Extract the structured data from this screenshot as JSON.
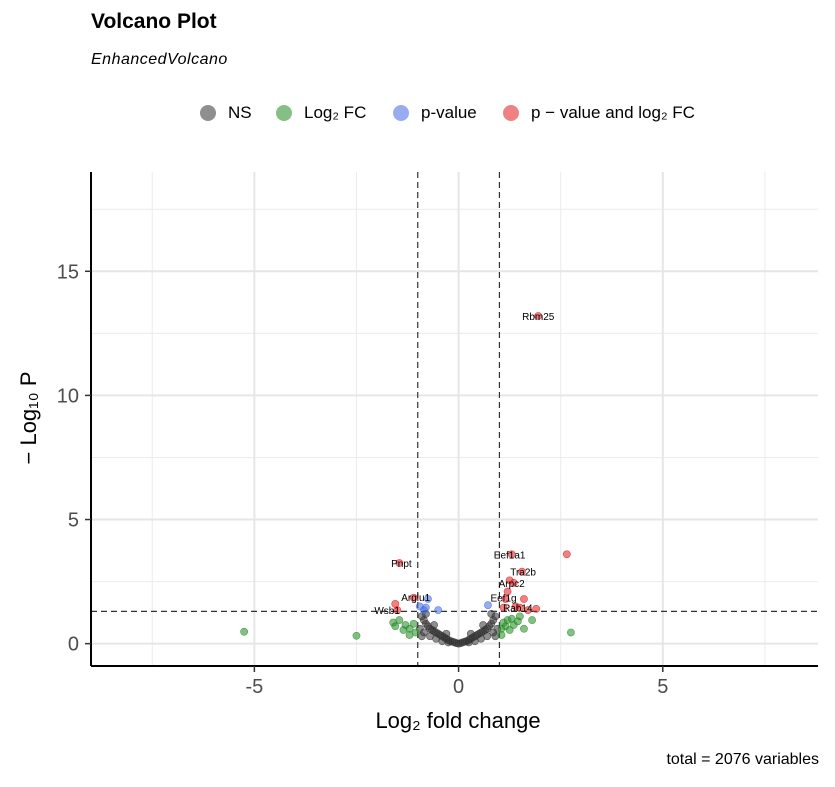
{
  "header": {
    "title": "Volcano Plot",
    "subtitle": "EnhancedVolcano"
  },
  "footer": "total = 2076 variables",
  "legend": [
    {
      "label": "NS",
      "color": "#333333"
    },
    {
      "label": "Log₂ FC",
      "color": "#228B22"
    },
    {
      "label": "p-value",
      "color": "#4169E1"
    },
    {
      "label": "p − value and log₂ FC",
      "color": "#E41A1C"
    }
  ],
  "chart_data": {
    "type": "scatter",
    "title": "Volcano Plot",
    "subtitle": "EnhancedVolcano",
    "xlabel": "Log₂ fold change",
    "ylabel": "− Log₁₀ P",
    "xlim": [
      -9,
      8.8
    ],
    "ylim": [
      -0.9,
      19
    ],
    "xticks": [
      -5,
      0,
      5
    ],
    "xtick_labels": [
      "-5",
      "0",
      "5"
    ],
    "yticks": [
      0,
      5,
      10,
      15
    ],
    "ytick_labels": [
      "0",
      "5",
      "10",
      "15"
    ],
    "grid": true,
    "legend_position": "top",
    "thresholds": {
      "log2fc": [
        -1,
        1
      ],
      "neg_log10_p": 1.3
    },
    "series": [
      {
        "name": "NS",
        "color": "#333333",
        "points": [
          [
            -0.9,
            1.1
          ],
          [
            -0.85,
            0.95
          ],
          [
            -0.8,
            0.8
          ],
          [
            -0.75,
            0.7
          ],
          [
            -0.7,
            0.6
          ],
          [
            -0.65,
            0.55
          ],
          [
            -0.6,
            0.5
          ],
          [
            -0.55,
            0.45
          ],
          [
            -0.5,
            0.4
          ],
          [
            -0.45,
            0.35
          ],
          [
            -0.4,
            0.3
          ],
          [
            -0.35,
            0.25
          ],
          [
            -0.3,
            0.2
          ],
          [
            -0.25,
            0.15
          ],
          [
            -0.2,
            0.1
          ],
          [
            -0.15,
            0.08
          ],
          [
            -0.1,
            0.05
          ],
          [
            -0.05,
            0.02
          ],
          [
            0.0,
            0.0
          ],
          [
            0.05,
            0.02
          ],
          [
            0.1,
            0.05
          ],
          [
            0.15,
            0.08
          ],
          [
            0.2,
            0.1
          ],
          [
            0.25,
            0.15
          ],
          [
            0.3,
            0.2
          ],
          [
            0.35,
            0.25
          ],
          [
            0.4,
            0.3
          ],
          [
            0.45,
            0.35
          ],
          [
            0.5,
            0.4
          ],
          [
            0.55,
            0.45
          ],
          [
            0.6,
            0.5
          ],
          [
            0.65,
            0.55
          ],
          [
            0.7,
            0.6
          ],
          [
            0.75,
            0.7
          ],
          [
            0.8,
            0.8
          ],
          [
            0.85,
            0.95
          ],
          [
            0.9,
            1.1
          ],
          [
            -0.95,
            0.6
          ],
          [
            -0.85,
            0.45
          ],
          [
            -0.7,
            0.3
          ],
          [
            -0.55,
            0.2
          ],
          [
            -0.4,
            0.1
          ],
          [
            -0.25,
            0.05
          ],
          [
            0.25,
            0.05
          ],
          [
            0.4,
            0.1
          ],
          [
            0.55,
            0.2
          ],
          [
            0.7,
            0.3
          ],
          [
            0.85,
            0.45
          ],
          [
            0.95,
            0.6
          ],
          [
            -0.9,
            0.3
          ],
          [
            0.9,
            0.3
          ],
          [
            -0.6,
            0.75
          ],
          [
            0.6,
            0.75
          ],
          [
            -0.3,
            0.4
          ],
          [
            0.3,
            0.4
          ],
          [
            -0.8,
            1.2
          ],
          [
            0.8,
            1.2
          ]
        ]
      },
      {
        "name": "Log₂ FC",
        "color": "#228B22",
        "points": [
          [
            -5.25,
            0.48
          ],
          [
            -2.5,
            0.32
          ],
          [
            2.75,
            0.45
          ],
          [
            -1.6,
            0.85
          ],
          [
            -1.55,
            0.7
          ],
          [
            -1.45,
            0.95
          ],
          [
            -1.35,
            0.55
          ],
          [
            -1.3,
            0.75
          ],
          [
            -1.2,
            0.6
          ],
          [
            -1.1,
            0.8
          ],
          [
            -1.05,
            0.45
          ],
          [
            1.05,
            0.6
          ],
          [
            1.1,
            0.85
          ],
          [
            1.15,
            0.7
          ],
          [
            1.2,
            0.95
          ],
          [
            1.25,
            0.55
          ],
          [
            1.3,
            1.0
          ],
          [
            1.35,
            0.75
          ],
          [
            1.45,
            0.9
          ],
          [
            1.5,
            1.1
          ],
          [
            1.6,
            0.6
          ],
          [
            1.8,
            0.95
          ],
          [
            1.05,
            0.35
          ],
          [
            -1.2,
            0.35
          ]
        ]
      },
      {
        "name": "p-value",
        "color": "#4169E1",
        "points": [
          [
            -0.75,
            1.8
          ],
          [
            -0.8,
            1.45
          ],
          [
            -0.85,
            1.35
          ],
          [
            -0.5,
            1.35
          ],
          [
            0.72,
            1.55
          ],
          [
            -0.95,
            1.5
          ]
        ]
      },
      {
        "name": "p − value and log₂ FC",
        "color": "#E41A1C",
        "points": [
          [
            1.95,
            13.2
          ],
          [
            2.65,
            3.6
          ],
          [
            1.3,
            3.6
          ],
          [
            1.55,
            2.9
          ],
          [
            -1.45,
            3.25
          ],
          [
            1.25,
            2.55
          ],
          [
            1.35,
            2.45
          ],
          [
            1.2,
            2.1
          ],
          [
            1.15,
            1.8
          ],
          [
            1.6,
            1.8
          ],
          [
            -1.55,
            1.6
          ],
          [
            -1.5,
            1.35
          ],
          [
            -1.1,
            1.85
          ],
          [
            1.5,
            1.45
          ],
          [
            1.9,
            1.4
          ],
          [
            1.7,
            1.35
          ],
          [
            1.4,
            1.5
          ],
          [
            1.1,
            1.45
          ]
        ]
      }
    ],
    "labels": [
      {
        "text": "Rbm25",
        "x": 1.95,
        "y": 13.2
      },
      {
        "text": "Eef1a1",
        "x": 1.25,
        "y": 3.6
      },
      {
        "text": "Pnpt",
        "x": -1.4,
        "y": 3.25
      },
      {
        "text": "Tra2b",
        "x": 1.58,
        "y": 2.9
      },
      {
        "text": "Arpc2",
        "x": 1.3,
        "y": 2.45
      },
      {
        "text": "Arglu1",
        "x": -1.05,
        "y": 1.88
      },
      {
        "text": "Eef1g",
        "x": 1.1,
        "y": 1.85
      },
      {
        "text": "Wsb1",
        "x": -1.75,
        "y": 1.35
      },
      {
        "text": "Rab14",
        "x": 1.45,
        "y": 1.45
      }
    ]
  }
}
